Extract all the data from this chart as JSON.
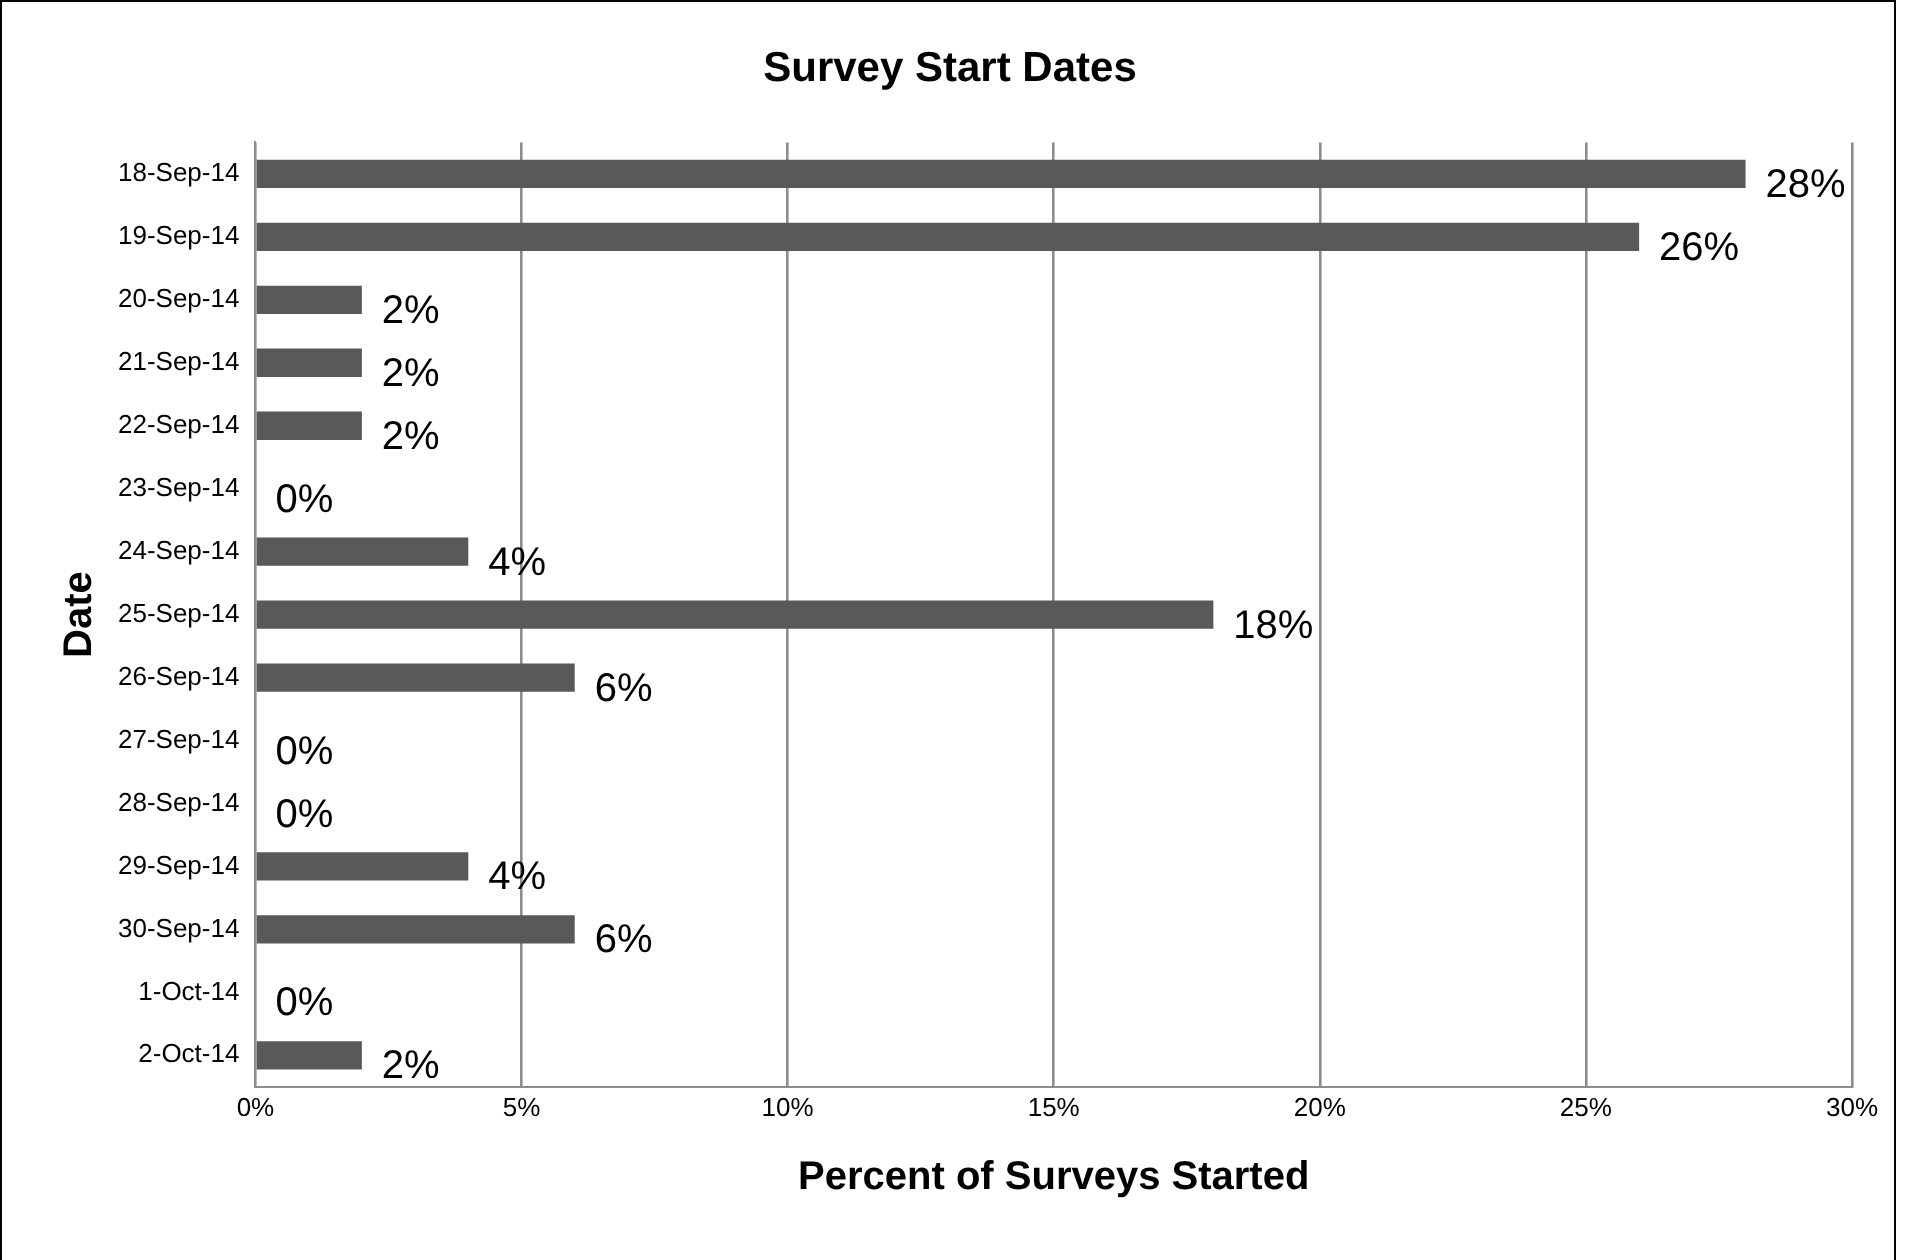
{
  "chart_data": {
    "type": "bar",
    "orientation": "horizontal",
    "title": "Survey Start Dates",
    "xlabel": "Percent of Surveys Started",
    "ylabel": "Date",
    "categories": [
      "18-Sep-14",
      "19-Sep-14",
      "20-Sep-14",
      "21-Sep-14",
      "22-Sep-14",
      "23-Sep-14",
      "24-Sep-14",
      "25-Sep-14",
      "26-Sep-14",
      "27-Sep-14",
      "28-Sep-14",
      "29-Sep-14",
      "30-Sep-14",
      "1-Oct-14",
      "2-Oct-14"
    ],
    "values": [
      28,
      26,
      2,
      2,
      2,
      0,
      4,
      18,
      6,
      0,
      0,
      4,
      6,
      0,
      2
    ],
    "value_labels": [
      "28%",
      "26%",
      "2%",
      "2%",
      "2%",
      "0%",
      "4%",
      "18%",
      "6%",
      "0%",
      "0%",
      "4%",
      "6%",
      "0%",
      "2%"
    ],
    "color": "#595959",
    "xlim": [
      0,
      30
    ],
    "xticks": [
      {
        "value": 0,
        "label": "0%"
      },
      {
        "value": 5,
        "label": "5%"
      },
      {
        "value": 10,
        "label": "10%"
      },
      {
        "value": 15,
        "label": "15%"
      },
      {
        "value": 20,
        "label": "20%"
      },
      {
        "value": 25,
        "label": "25%"
      },
      {
        "value": 30,
        "label": "30%"
      }
    ],
    "grid": "x",
    "legend": false
  }
}
